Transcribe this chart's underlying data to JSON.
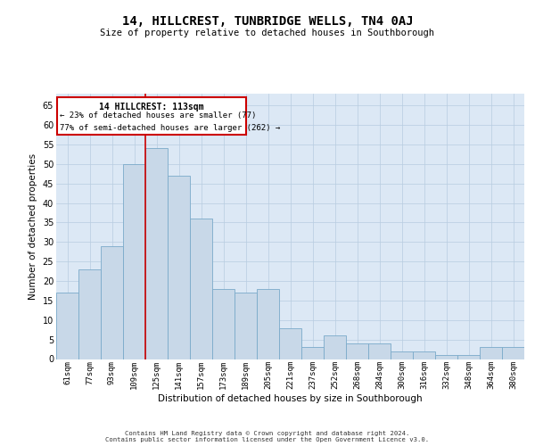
{
  "title": "14, HILLCREST, TUNBRIDGE WELLS, TN4 0AJ",
  "subtitle": "Size of property relative to detached houses in Southborough",
  "xlabel": "Distribution of detached houses by size in Southborough",
  "ylabel": "Number of detached properties",
  "categories": [
    "61sqm",
    "77sqm",
    "93sqm",
    "109sqm",
    "125sqm",
    "141sqm",
    "157sqm",
    "173sqm",
    "189sqm",
    "205sqm",
    "221sqm",
    "237sqm",
    "252sqm",
    "268sqm",
    "284sqm",
    "300sqm",
    "316sqm",
    "332sqm",
    "348sqm",
    "364sqm",
    "380sqm"
  ],
  "bar_values": [
    17,
    23,
    29,
    50,
    54,
    47,
    36,
    18,
    17,
    18,
    8,
    3,
    6,
    4,
    4,
    2,
    2,
    1,
    1,
    3,
    3
  ],
  "property_label": "14 HILLCREST: 113sqm",
  "annotation_line1": "← 23% of detached houses are smaller (77)",
  "annotation_line2": "77% of semi-detached houses are larger (262) →",
  "vline_position": 3.5,
  "bar_color": "#c8d8e8",
  "bar_edge_color": "#7aaaca",
  "vline_color": "#cc0000",
  "annotation_box_color": "#ffffff",
  "annotation_box_edge": "#cc0000",
  "background_color": "#ffffff",
  "axes_bg_color": "#dce8f5",
  "grid_color": "#b8cce0",
  "ylim": [
    0,
    68
  ],
  "yticks": [
    0,
    5,
    10,
    15,
    20,
    25,
    30,
    35,
    40,
    45,
    50,
    55,
    60,
    65
  ],
  "footer": "Contains HM Land Registry data © Crown copyright and database right 2024.\nContains public sector information licensed under the Open Government Licence v3.0."
}
